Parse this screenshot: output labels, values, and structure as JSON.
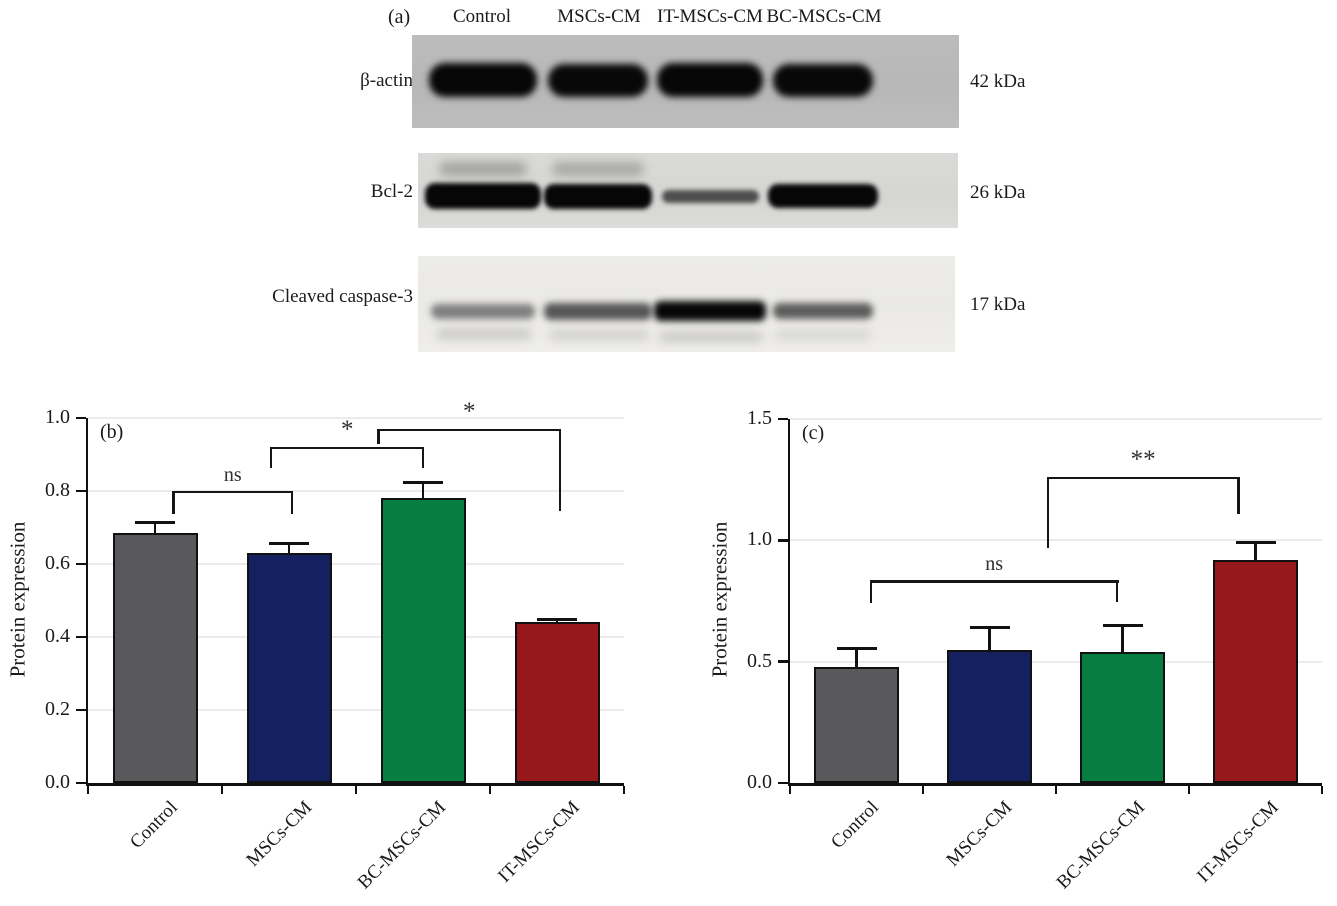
{
  "panel_a": {
    "label": "(a)",
    "lane_headers": [
      "Control",
      "MSCs-CM",
      "IT-MSCs-CM",
      "BC-MSCs-CM"
    ],
    "blots": [
      {
        "protein": "β-actin",
        "molecular_weight": "42 kDa",
        "band_intensities": [
          1.0,
          0.96,
          0.98,
          0.96
        ]
      },
      {
        "protein": "Bcl-2",
        "molecular_weight": "26 kDa",
        "band_intensities": [
          1.0,
          0.97,
          0.62,
          0.97
        ]
      },
      {
        "protein": "Cleaved caspase-3",
        "molecular_weight": "17 kDa",
        "band_intensities": [
          0.38,
          0.58,
          0.97,
          0.55
        ]
      }
    ]
  },
  "chart_data": [
    {
      "type": "bar",
      "panel_label": "(b)",
      "title": "",
      "xlabel": "",
      "ylabel": "Protein expression",
      "ylim": [
        0,
        1.0
      ],
      "yticks": [
        0.0,
        0.2,
        0.4,
        0.6,
        0.8,
        1.0
      ],
      "ytick_labels": [
        "0.0",
        "0.2",
        "0.4",
        "0.6",
        "0.8",
        "1.0"
      ],
      "grid": true,
      "legend": "none",
      "categories": [
        "Control",
        "MSCs-CM",
        "BC-MSCs-CM",
        "IT-MSCs-CM"
      ],
      "values": [
        0.685,
        0.63,
        0.78,
        0.44
      ],
      "errors_plus": [
        0.03,
        0.025,
        0.042,
        0.008
      ],
      "bar_colors": [
        "#59595b",
        "#14205f",
        "#087d41",
        "#96181b"
      ],
      "significance_brackets": [
        {
          "label": "ns",
          "y": 0.8,
          "x1": 0.63,
          "x2": 1.53,
          "drop1": 0.062,
          "drop2": 0.062
        },
        {
          "label": "*",
          "y": 0.92,
          "x1": 1.36,
          "x2": 2.51,
          "drop1": 0.057,
          "drop2": 0.057
        },
        {
          "label": "*",
          "y": 0.97,
          "x1": 2.16,
          "x2": 3.53,
          "drop1": 0.042,
          "drop2": 0.225
        }
      ]
    },
    {
      "type": "bar",
      "panel_label": "(c)",
      "title": "",
      "xlabel": "",
      "ylabel": "Protein expression",
      "ylim": [
        0,
        1.5
      ],
      "yticks": [
        0.0,
        0.5,
        1.0,
        1.5
      ],
      "ytick_labels": [
        "0.0",
        "0.5",
        "1.0",
        "1.5"
      ],
      "grid": true,
      "legend": "none",
      "categories": [
        "Control",
        "MSCs-CM",
        "BC-MSCs-CM",
        "IT-MSCs-CM"
      ],
      "values": [
        0.48,
        0.55,
        0.54,
        0.92
      ],
      "errors_plus": [
        0.075,
        0.09,
        0.11,
        0.07
      ],
      "bar_colors": [
        "#59595b",
        "#14205f",
        "#087d41",
        "#96181b"
      ],
      "significance_brackets": [
        {
          "label": "ns",
          "y": 0.835,
          "x1": 0.6,
          "x2": 2.47,
          "drop1": 0.095,
          "drop2": 0.09
        },
        {
          "label": "**",
          "y": 1.26,
          "x1": 1.93,
          "x2": 3.38,
          "drop1": 0.29,
          "drop2": 0.15
        }
      ]
    }
  ]
}
